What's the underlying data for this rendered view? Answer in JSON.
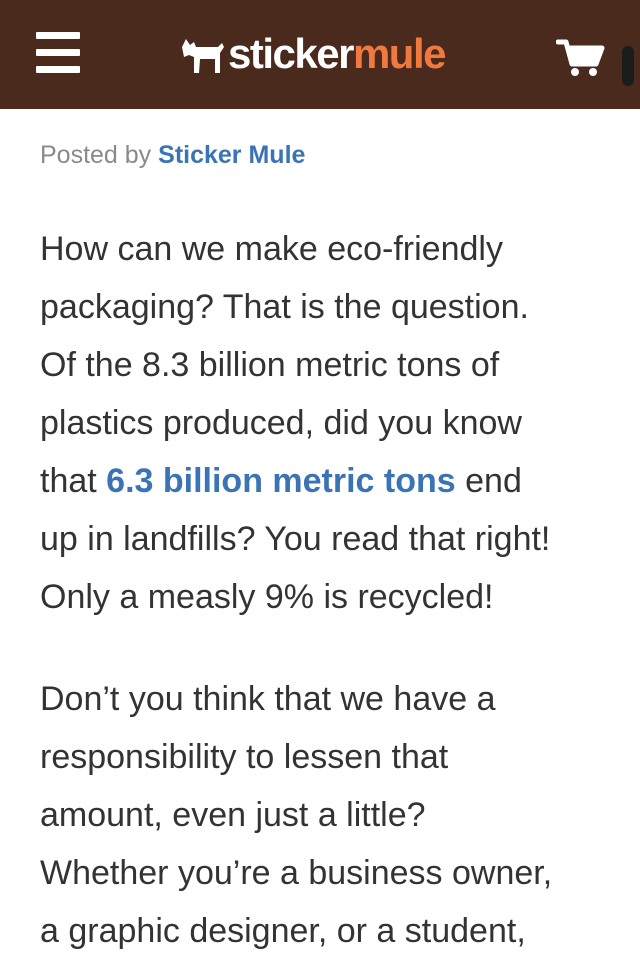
{
  "header": {
    "logo_word_1": "sticker",
    "logo_word_2": "mule",
    "icons": [
      "menu-icon",
      "mule-logo-icon",
      "cart-icon"
    ],
    "bg_color": "#4a2a1d",
    "accent_color": "#f0793f"
  },
  "byline": {
    "prefix": "Posted by ",
    "author": "Sticker Mule"
  },
  "paragraph_1": {
    "line_1": "How can we make eco-friendly",
    "line_2": "packaging? That is the question.",
    "line_3": "Of the 8.3 billion metric tons of",
    "line_4": "plastics produced, did you know",
    "line_5_before": "that ",
    "line_5_link": "6.3 billion metric tons",
    "line_5_after": " end",
    "line_6": "up in landfills? You read that right!",
    "line_7": "Only a measly 9% is recycled!"
  },
  "paragraph_2": {
    "line_1": "Don’t you think that we have a",
    "line_2": "responsibility to lessen that",
    "line_3": "amount, even just a little?",
    "line_4": "Whether you’re a business owner,",
    "line_5": "a graphic designer, or a student,"
  },
  "link_color": "#3a74b4"
}
